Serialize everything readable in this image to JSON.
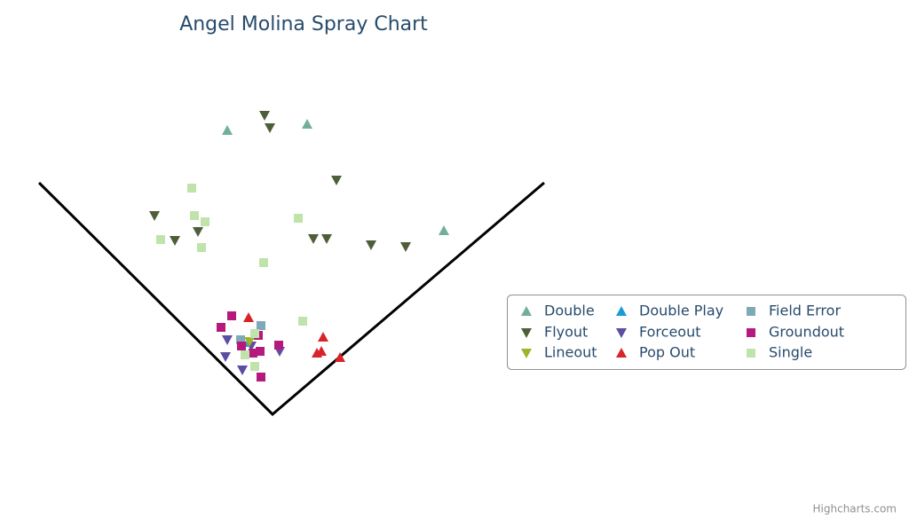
{
  "chart_data": {
    "type": "scatter",
    "title": "Angel Molina Spray Chart",
    "credits": "Highcharts.com",
    "xlim": [
      -307,
      717
    ],
    "ylim": [
      -118,
      467
    ],
    "series": [
      {
        "name": "Double",
        "color": "#72ae9e",
        "marker": "triangle",
        "x": [
          -51,
          39,
          193
        ],
        "y": [
          320,
          327,
          207
        ]
      },
      {
        "name": "Double Play",
        "color": "#1a9ad6",
        "marker": "triangle",
        "x": [
          -33
        ],
        "y": [
          81
        ]
      },
      {
        "name": "Field Error",
        "color": "#7fa9b8",
        "marker": "square",
        "x": [
          -13,
          -36
        ],
        "y": [
          100,
          84
        ]
      },
      {
        "name": "Flyout",
        "color": "#4f5e3a",
        "marker": "triangle-down",
        "x": [
          -9,
          -3,
          72,
          -133,
          -110,
          -84,
          46,
          61,
          111,
          150
        ],
        "y": [
          337,
          323,
          264,
          224,
          196,
          206,
          198,
          198,
          191,
          189
        ]
      },
      {
        "name": "Forceout",
        "color": "#5b4ea3",
        "marker": "triangle-down",
        "x": [
          -51,
          -53,
          -34,
          8,
          -24
        ],
        "y": [
          84,
          65,
          50,
          71,
          77
        ]
      },
      {
        "name": "Groundout",
        "color": "#b5197e",
        "marker": "square",
        "x": [
          -46,
          -58,
          -16,
          7,
          -14,
          -22,
          -13,
          -35
        ],
        "y": [
          111,
          98,
          89,
          78,
          71,
          69,
          42,
          77
        ]
      },
      {
        "name": "Lineout",
        "color": "#9bb52a",
        "marker": "triangle-down",
        "x": [
          -26
        ],
        "y": [
          82
        ]
      },
      {
        "name": "Pop Out",
        "color": "#d9232a",
        "marker": "triangle",
        "x": [
          -27,
          57,
          50,
          55,
          76
        ],
        "y": [
          109,
          87,
          69,
          71,
          64
        ]
      },
      {
        "name": "Single",
        "color": "#bfe3a8",
        "marker": "square",
        "x": [
          -91,
          -88,
          -76,
          -126,
          -80,
          29,
          -10,
          34,
          -20,
          -31,
          -20
        ],
        "y": [
          255,
          224,
          217,
          197,
          188,
          221,
          171,
          105,
          91,
          67,
          54
        ]
      }
    ]
  }
}
